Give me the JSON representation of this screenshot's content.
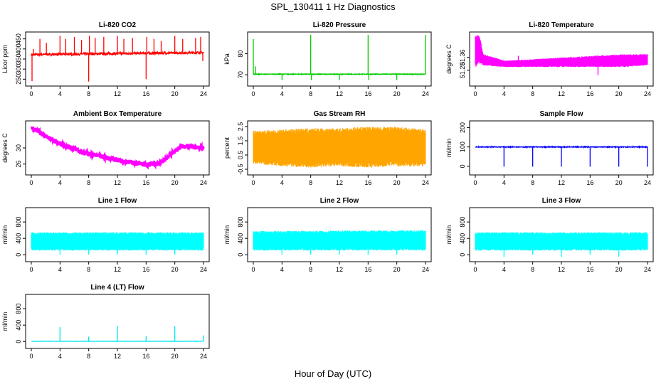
{
  "figure": {
    "title": "SPL_130411  1 Hz Diagnostics",
    "xlabel": "Hour of Day (UTC)"
  },
  "chart_data": [
    {
      "id": "co2",
      "type": "line",
      "title": "Li-820 CO2",
      "ylabel": "Licor ppm",
      "color": "#ff0000",
      "xlim": [
        0,
        24
      ],
      "xticks": [
        0,
        4,
        8,
        12,
        16,
        20,
        24
      ],
      "ylim": [
        230,
        470
      ],
      "yticks": [
        250,
        300,
        350,
        400,
        450
      ],
      "base": 380,
      "noise": 6,
      "drift": [
        [
          0,
          372
        ],
        [
          24,
          382
        ]
      ],
      "events": [
        [
          0.1,
          240
        ],
        [
          0.3,
          400
        ],
        [
          1.2,
          450
        ],
        [
          2.1,
          430
        ],
        [
          4.0,
          465
        ],
        [
          4.8,
          450
        ],
        [
          6.0,
          460
        ],
        [
          7.0,
          445
        ],
        [
          8.0,
          238
        ],
        [
          8.1,
          465
        ],
        [
          8.9,
          455
        ],
        [
          10.1,
          460
        ],
        [
          12.0,
          465
        ],
        [
          12.9,
          450
        ],
        [
          14.1,
          455
        ],
        [
          16.0,
          250
        ],
        [
          16.1,
          460
        ],
        [
          17.1,
          450
        ],
        [
          18.1,
          440
        ],
        [
          20.0,
          465
        ],
        [
          21.1,
          450
        ],
        [
          22.9,
          455
        ],
        [
          23.6,
          460
        ],
        [
          23.9,
          340
        ]
      ]
    },
    {
      "id": "pressure",
      "type": "line",
      "title": "Li-820 Pressure",
      "ylabel": "kPa",
      "color": "#00cc00",
      "xlim": [
        0,
        24
      ],
      "xticks": [
        0,
        4,
        8,
        12,
        16,
        20,
        24
      ],
      "ylim": [
        66,
        89
      ],
      "yticks": [
        70,
        80
      ],
      "base": 70.3,
      "noise": 0.15,
      "drift": [
        [
          0,
          70.3
        ],
        [
          24,
          70.3
        ]
      ],
      "events": [
        [
          0.0,
          87
        ],
        [
          0.3,
          74
        ],
        [
          4.0,
          67.5
        ],
        [
          8.0,
          89
        ],
        [
          8.1,
          67.5
        ],
        [
          12.0,
          67.5
        ],
        [
          16.0,
          89
        ],
        [
          16.1,
          67.5
        ],
        [
          20.0,
          67.5
        ],
        [
          24.0,
          89
        ]
      ]
    },
    {
      "id": "temperature",
      "type": "band",
      "title": "Li-820 Temperature",
      "ylabel": "degrees C",
      "color": "#ff00ff",
      "xlim": [
        0,
        24
      ],
      "xticks": [
        0,
        4,
        8,
        12,
        16,
        20,
        24
      ],
      "ylim": [
        51.2,
        51.5
      ],
      "yticks": [
        51.28,
        51.36
      ],
      "band": [
        [
          0.0,
          51.3,
          51.5
        ],
        [
          0.6,
          51.32,
          51.5
        ],
        [
          1.1,
          51.31,
          51.38
        ],
        [
          4.1,
          51.3,
          51.34
        ],
        [
          20.6,
          51.3,
          51.38
        ],
        [
          24.0,
          51.31,
          51.38
        ]
      ],
      "events": [
        [
          6.0,
          51.37
        ],
        [
          17.1,
          51.25
        ]
      ]
    },
    {
      "id": "ambient",
      "type": "line",
      "title": "Ambient Box Temperature",
      "ylabel": "degrees C",
      "color": "#ff00ff",
      "xlim": [
        0,
        24
      ],
      "xticks": [
        0,
        4,
        8,
        12,
        16,
        20,
        24
      ],
      "ylim": [
        24,
        36
      ],
      "yticks": [
        26,
        30
      ],
      "base": 0,
      "noise": 0.6,
      "drift": [
        [
          0,
          35
        ],
        [
          4,
          31
        ],
        [
          8,
          28.5
        ],
        [
          12,
          27
        ],
        [
          16,
          25.8
        ],
        [
          18,
          26.2
        ],
        [
          19.5,
          28.5
        ],
        [
          21,
          30.5
        ],
        [
          24,
          30
        ]
      ],
      "events": []
    },
    {
      "id": "rh",
      "type": "band",
      "title": "Gas Stream RH",
      "ylabel": "percent",
      "color": "#ffa500",
      "xlim": [
        0,
        24
      ],
      "xticks": [
        0,
        4,
        8,
        12,
        16,
        20,
        24
      ],
      "ylim": [
        -0.7,
        2.7
      ],
      "yticks": [
        -0.5,
        0.5,
        1.5,
        2.5
      ],
      "band": [
        [
          0,
          -0.1,
          2.2
        ],
        [
          4,
          -0.3,
          2.3
        ],
        [
          8,
          -0.4,
          2.4
        ],
        [
          12,
          -0.3,
          2.4
        ],
        [
          16,
          -0.4,
          2.5
        ],
        [
          20,
          -0.3,
          2.5
        ],
        [
          24,
          -0.3,
          2.3
        ]
      ],
      "events": []
    },
    {
      "id": "sampleflow",
      "type": "line",
      "title": "Sample Flow",
      "ylabel": "ml/min",
      "color": "#0000ff",
      "xlim": [
        0,
        24
      ],
      "xticks": [
        0,
        4,
        8,
        12,
        16,
        20,
        24
      ],
      "ylim": [
        -30,
        220
      ],
      "yticks": [
        0,
        100,
        200
      ],
      "base": 100,
      "noise": 2,
      "drift": [
        [
          0,
          100
        ],
        [
          24,
          100
        ]
      ],
      "events": [
        [
          4.0,
          -2
        ],
        [
          8.0,
          -2
        ],
        [
          12.0,
          -2
        ],
        [
          16.0,
          -2
        ],
        [
          20.0,
          -2
        ],
        [
          24.0,
          -2
        ]
      ]
    },
    {
      "id": "line1",
      "type": "band",
      "title": "Line 1 Flow",
      "ylabel": "ml/min",
      "color": "#00ffff",
      "xlim": [
        0,
        24
      ],
      "xticks": [
        0,
        4,
        8,
        12,
        16,
        20,
        24
      ],
      "ylim": [
        -100,
        1080
      ],
      "yticks": [
        0,
        400,
        800
      ],
      "band": [
        [
          0,
          100,
          550
        ],
        [
          24,
          100,
          550
        ]
      ],
      "events": [
        [
          4.0,
          0
        ],
        [
          8.0,
          0
        ],
        [
          12.0,
          0
        ],
        [
          16.0,
          0
        ],
        [
          20.0,
          0
        ]
      ]
    },
    {
      "id": "line2",
      "type": "band",
      "title": "Line 2 Flow",
      "ylabel": "ml/min",
      "color": "#00ffff",
      "xlim": [
        0,
        24
      ],
      "xticks": [
        0,
        4,
        8,
        12,
        16,
        20,
        24
      ],
      "ylim": [
        -100,
        1080
      ],
      "yticks": [
        0,
        400,
        800
      ],
      "band": [
        [
          0,
          100,
          580
        ],
        [
          24,
          100,
          600
        ]
      ],
      "events": [
        [
          4.0,
          0
        ],
        [
          8.0,
          0
        ],
        [
          12.0,
          0
        ],
        [
          16.0,
          0
        ],
        [
          20.0,
          0
        ]
      ]
    },
    {
      "id": "line3",
      "type": "band",
      "title": "Line 3 Flow",
      "ylabel": "ml/min",
      "color": "#00ffff",
      "xlim": [
        0,
        24
      ],
      "xticks": [
        0,
        4,
        8,
        12,
        16,
        20,
        24
      ],
      "ylim": [
        -100,
        1080
      ],
      "yticks": [
        0,
        400,
        800
      ],
      "band": [
        [
          0,
          100,
          550
        ],
        [
          24,
          100,
          550
        ]
      ],
      "events": [
        [
          4.0,
          -50
        ],
        [
          8.0,
          0
        ],
        [
          12.0,
          -50
        ],
        [
          16.0,
          0
        ],
        [
          20.0,
          -50
        ]
      ]
    },
    {
      "id": "line4",
      "type": "line",
      "title": "Line 4 (LT) Flow",
      "ylabel": "ml/min",
      "color": "#00e5ee",
      "xlim": [
        0,
        24
      ],
      "xticks": [
        0,
        4,
        8,
        12,
        16,
        20,
        24
      ],
      "ylim": [
        -100,
        1080
      ],
      "yticks": [
        0,
        400,
        800
      ],
      "base": 5,
      "noise": 3,
      "drift": [
        [
          0,
          5
        ],
        [
          24,
          5
        ]
      ],
      "events": [
        [
          4.0,
          350
        ],
        [
          8.0,
          120
        ],
        [
          12.0,
          380
        ],
        [
          16.0,
          130
        ],
        [
          20.0,
          370
        ],
        [
          24.0,
          150
        ]
      ]
    }
  ]
}
